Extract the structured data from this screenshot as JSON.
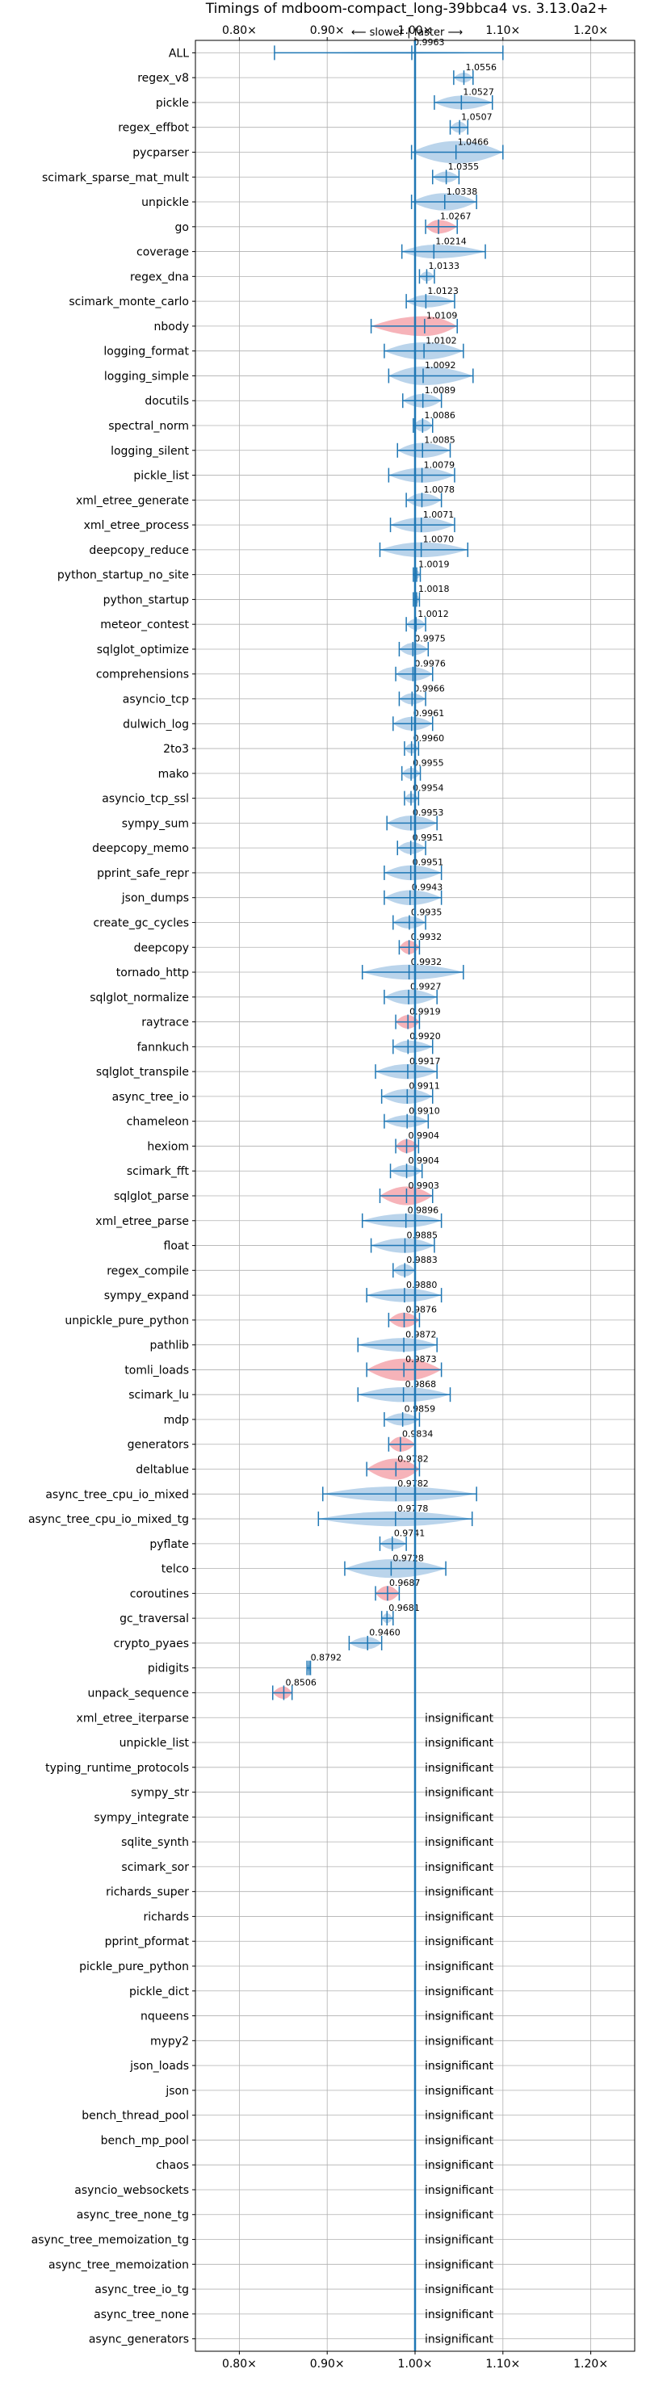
{
  "chart_data": {
    "type": "violin",
    "title": "Timings of mdboom-compact_long-39bbca4 vs. 3.13.0a2+",
    "direction_label": "⟵ slower  |  faster ⟶",
    "xlim": [
      0.75,
      1.25
    ],
    "x_ticks": [
      0.8,
      0.9,
      1.0,
      1.1,
      1.2
    ],
    "x_tick_labels": [
      "0.80×",
      "0.90×",
      "1.00×",
      "1.10×",
      "1.20×"
    ],
    "reference_line": 1.0,
    "grid": true,
    "insignificant_label": "insignificant",
    "colors": {
      "faster": "#aecde8",
      "slower": "#f4a6ad",
      "edge": "#1f77b4",
      "grid": "#b0b0b0"
    },
    "benchmarks": [
      {
        "name": "ALL",
        "value": 0.9963,
        "min": 0.84,
        "max": 1.1,
        "width": 0.08,
        "color": "faster"
      },
      {
        "name": "regex_v8",
        "value": 1.0556,
        "min": 1.044,
        "max": 1.066,
        "width": 0.4,
        "color": "faster"
      },
      {
        "name": "pickle",
        "value": 1.0527,
        "min": 1.022,
        "max": 1.088,
        "width": 0.55,
        "color": "faster"
      },
      {
        "name": "regex_effbot",
        "value": 1.0507,
        "min": 1.04,
        "max": 1.06,
        "width": 0.45,
        "color": "faster"
      },
      {
        "name": "pycparser",
        "value": 1.0466,
        "min": 0.996,
        "max": 1.1,
        "width": 0.9,
        "color": "faster"
      },
      {
        "name": "scimark_sparse_mat_mult",
        "value": 1.0355,
        "min": 1.02,
        "max": 1.05,
        "width": 0.45,
        "color": "faster"
      },
      {
        "name": "unpickle",
        "value": 1.0338,
        "min": 0.996,
        "max": 1.07,
        "width": 0.7,
        "color": "faster"
      },
      {
        "name": "go",
        "value": 1.0267,
        "min": 1.012,
        "max": 1.048,
        "width": 0.55,
        "color": "slower"
      },
      {
        "name": "coverage",
        "value": 1.0214,
        "min": 0.985,
        "max": 1.08,
        "width": 0.55,
        "color": "faster"
      },
      {
        "name": "regex_dna",
        "value": 1.0133,
        "min": 1.005,
        "max": 1.022,
        "width": 0.4,
        "color": "faster"
      },
      {
        "name": "scimark_monte_carlo",
        "value": 1.0123,
        "min": 0.99,
        "max": 1.045,
        "width": 0.5,
        "color": "faster"
      },
      {
        "name": "nbody",
        "value": 1.0109,
        "min": 0.95,
        "max": 1.048,
        "width": 0.8,
        "color": "slower"
      },
      {
        "name": "logging_format",
        "value": 1.0102,
        "min": 0.965,
        "max": 1.055,
        "width": 0.7,
        "color": "faster"
      },
      {
        "name": "logging_simple",
        "value": 1.0092,
        "min": 0.97,
        "max": 1.066,
        "width": 0.75,
        "color": "faster"
      },
      {
        "name": "docutils",
        "value": 1.0089,
        "min": 0.986,
        "max": 1.03,
        "width": 0.55,
        "color": "faster"
      },
      {
        "name": "spectral_norm",
        "value": 1.0086,
        "min": 0.998,
        "max": 1.02,
        "width": 0.5,
        "color": "faster"
      },
      {
        "name": "logging_silent",
        "value": 1.0085,
        "min": 0.98,
        "max": 1.04,
        "width": 0.6,
        "color": "faster"
      },
      {
        "name": "pickle_list",
        "value": 1.0079,
        "min": 0.97,
        "max": 1.045,
        "width": 0.6,
        "color": "faster"
      },
      {
        "name": "xml_etree_generate",
        "value": 1.0078,
        "min": 0.99,
        "max": 1.03,
        "width": 0.55,
        "color": "faster"
      },
      {
        "name": "xml_etree_process",
        "value": 1.0071,
        "min": 0.972,
        "max": 1.045,
        "width": 0.6,
        "color": "faster"
      },
      {
        "name": "deepcopy_reduce",
        "value": 1.007,
        "min": 0.96,
        "max": 1.06,
        "width": 0.6,
        "color": "faster"
      },
      {
        "name": "python_startup_no_site",
        "value": 1.0019,
        "min": 0.998,
        "max": 1.006,
        "width": 0.35,
        "color": "faster"
      },
      {
        "name": "python_startup",
        "value": 1.0018,
        "min": 0.998,
        "max": 1.005,
        "width": 0.35,
        "color": "faster"
      },
      {
        "name": "meteor_contest",
        "value": 1.0012,
        "min": 0.99,
        "max": 1.012,
        "width": 0.45,
        "color": "faster"
      },
      {
        "name": "sqlglot_optimize",
        "value": 0.9975,
        "min": 0.982,
        "max": 1.015,
        "width": 0.5,
        "color": "faster"
      },
      {
        "name": "comprehensions",
        "value": 0.9976,
        "min": 0.978,
        "max": 1.02,
        "width": 0.55,
        "color": "faster"
      },
      {
        "name": "asyncio_tcp",
        "value": 0.9966,
        "min": 0.982,
        "max": 1.012,
        "width": 0.45,
        "color": "faster"
      },
      {
        "name": "dulwich_log",
        "value": 0.9961,
        "min": 0.975,
        "max": 1.02,
        "width": 0.55,
        "color": "faster"
      },
      {
        "name": "2to3",
        "value": 0.996,
        "min": 0.988,
        "max": 1.004,
        "width": 0.4,
        "color": "faster"
      },
      {
        "name": "mako",
        "value": 0.9955,
        "min": 0.985,
        "max": 1.006,
        "width": 0.45,
        "color": "faster"
      },
      {
        "name": "asyncio_tcp_ssl",
        "value": 0.9954,
        "min": 0.988,
        "max": 1.004,
        "width": 0.4,
        "color": "faster"
      },
      {
        "name": "sympy_sum",
        "value": 0.9953,
        "min": 0.968,
        "max": 1.025,
        "width": 0.6,
        "color": "faster"
      },
      {
        "name": "deepcopy_memo",
        "value": 0.9951,
        "min": 0.98,
        "max": 1.012,
        "width": 0.5,
        "color": "faster"
      },
      {
        "name": "pprint_safe_repr",
        "value": 0.9951,
        "min": 0.965,
        "max": 1.03,
        "width": 0.6,
        "color": "faster"
      },
      {
        "name": "json_dumps",
        "value": 0.9943,
        "min": 0.965,
        "max": 1.03,
        "width": 0.6,
        "color": "faster"
      },
      {
        "name": "create_gc_cycles",
        "value": 0.9935,
        "min": 0.975,
        "max": 1.012,
        "width": 0.5,
        "color": "faster"
      },
      {
        "name": "deepcopy",
        "value": 0.9932,
        "min": 0.982,
        "max": 1.005,
        "width": 0.55,
        "color": "slower"
      },
      {
        "name": "tornado_http",
        "value": 0.9932,
        "min": 0.94,
        "max": 1.055,
        "width": 0.6,
        "color": "faster"
      },
      {
        "name": "sqlglot_normalize",
        "value": 0.9927,
        "min": 0.965,
        "max": 1.025,
        "width": 0.6,
        "color": "faster"
      },
      {
        "name": "raytrace",
        "value": 0.9919,
        "min": 0.978,
        "max": 1.005,
        "width": 0.55,
        "color": "slower"
      },
      {
        "name": "fannkuch",
        "value": 0.992,
        "min": 0.975,
        "max": 1.02,
        "width": 0.5,
        "color": "faster"
      },
      {
        "name": "sqlglot_transpile",
        "value": 0.9917,
        "min": 0.955,
        "max": 1.025,
        "width": 0.6,
        "color": "faster"
      },
      {
        "name": "async_tree_io",
        "value": 0.9911,
        "min": 0.962,
        "max": 1.02,
        "width": 0.6,
        "color": "faster"
      },
      {
        "name": "chameleon",
        "value": 0.991,
        "min": 0.965,
        "max": 1.015,
        "width": 0.5,
        "color": "faster"
      },
      {
        "name": "hexiom",
        "value": 0.9904,
        "min": 0.978,
        "max": 1.004,
        "width": 0.55,
        "color": "slower"
      },
      {
        "name": "scimark_fft",
        "value": 0.9904,
        "min": 0.972,
        "max": 1.008,
        "width": 0.5,
        "color": "faster"
      },
      {
        "name": "sqlglot_parse",
        "value": 0.9903,
        "min": 0.96,
        "max": 1.02,
        "width": 0.75,
        "color": "slower"
      },
      {
        "name": "xml_etree_parse",
        "value": 0.9896,
        "min": 0.94,
        "max": 1.03,
        "width": 0.55,
        "color": "faster"
      },
      {
        "name": "float",
        "value": 0.9885,
        "min": 0.95,
        "max": 1.022,
        "width": 0.6,
        "color": "faster"
      },
      {
        "name": "regex_compile",
        "value": 0.9883,
        "min": 0.975,
        "max": 1.0,
        "width": 0.5,
        "color": "faster"
      },
      {
        "name": "sympy_expand",
        "value": 0.988,
        "min": 0.945,
        "max": 1.03,
        "width": 0.55,
        "color": "faster"
      },
      {
        "name": "unpickle_pure_python",
        "value": 0.9876,
        "min": 0.97,
        "max": 1.005,
        "width": 0.6,
        "color": "slower"
      },
      {
        "name": "pathlib",
        "value": 0.9872,
        "min": 0.935,
        "max": 1.025,
        "width": 0.55,
        "color": "faster"
      },
      {
        "name": "tomli_loads",
        "value": 0.9873,
        "min": 0.945,
        "max": 1.03,
        "width": 0.9,
        "color": "slower"
      },
      {
        "name": "scimark_lu",
        "value": 0.9868,
        "min": 0.935,
        "max": 1.04,
        "width": 0.6,
        "color": "faster"
      },
      {
        "name": "mdp",
        "value": 0.9859,
        "min": 0.965,
        "max": 1.005,
        "width": 0.5,
        "color": "faster"
      },
      {
        "name": "generators",
        "value": 0.9834,
        "min": 0.97,
        "max": 1.0,
        "width": 0.6,
        "color": "slower"
      },
      {
        "name": "deltablue",
        "value": 0.9782,
        "min": 0.945,
        "max": 1.005,
        "width": 0.85,
        "color": "slower"
      },
      {
        "name": "async_tree_cpu_io_mixed",
        "value": 0.9782,
        "min": 0.895,
        "max": 1.07,
        "width": 0.6,
        "color": "faster"
      },
      {
        "name": "async_tree_cpu_io_mixed_tg",
        "value": 0.9778,
        "min": 0.89,
        "max": 1.065,
        "width": 0.6,
        "color": "faster"
      },
      {
        "name": "pyflate",
        "value": 0.9741,
        "min": 0.96,
        "max": 0.99,
        "width": 0.45,
        "color": "faster"
      },
      {
        "name": "telco",
        "value": 0.9728,
        "min": 0.92,
        "max": 1.035,
        "width": 0.75,
        "color": "faster"
      },
      {
        "name": "coroutines",
        "value": 0.9687,
        "min": 0.955,
        "max": 0.982,
        "width": 0.6,
        "color": "slower"
      },
      {
        "name": "gc_traversal",
        "value": 0.9681,
        "min": 0.962,
        "max": 0.975,
        "width": 0.4,
        "color": "faster"
      },
      {
        "name": "crypto_pyaes",
        "value": 0.946,
        "min": 0.925,
        "max": 0.962,
        "width": 0.5,
        "color": "faster"
      },
      {
        "name": "pidigits",
        "value": 0.8792,
        "min": 0.877,
        "max": 0.881,
        "width": 0.3,
        "color": "faster"
      },
      {
        "name": "unpack_sequence",
        "value": 0.8506,
        "min": 0.838,
        "max": 0.86,
        "width": 0.5,
        "color": "slower"
      },
      {
        "name": "xml_etree_iterparse",
        "insignificant": true
      },
      {
        "name": "unpickle_list",
        "insignificant": true
      },
      {
        "name": "typing_runtime_protocols",
        "insignificant": true
      },
      {
        "name": "sympy_str",
        "insignificant": true
      },
      {
        "name": "sympy_integrate",
        "insignificant": true
      },
      {
        "name": "sqlite_synth",
        "insignificant": true
      },
      {
        "name": "scimark_sor",
        "insignificant": true
      },
      {
        "name": "richards_super",
        "insignificant": true
      },
      {
        "name": "richards",
        "insignificant": true
      },
      {
        "name": "pprint_pformat",
        "insignificant": true
      },
      {
        "name": "pickle_pure_python",
        "insignificant": true
      },
      {
        "name": "pickle_dict",
        "insignificant": true
      },
      {
        "name": "nqueens",
        "insignificant": true
      },
      {
        "name": "mypy2",
        "insignificant": true
      },
      {
        "name": "json_loads",
        "insignificant": true
      },
      {
        "name": "json",
        "insignificant": true
      },
      {
        "name": "bench_thread_pool",
        "insignificant": true
      },
      {
        "name": "bench_mp_pool",
        "insignificant": true
      },
      {
        "name": "chaos",
        "insignificant": true
      },
      {
        "name": "asyncio_websockets",
        "insignificant": true
      },
      {
        "name": "async_tree_none_tg",
        "insignificant": true
      },
      {
        "name": "async_tree_memoization_tg",
        "insignificant": true
      },
      {
        "name": "async_tree_memoization",
        "insignificant": true
      },
      {
        "name": "async_tree_io_tg",
        "insignificant": true
      },
      {
        "name": "async_tree_none",
        "insignificant": true
      },
      {
        "name": "async_generators",
        "insignificant": true
      }
    ]
  }
}
